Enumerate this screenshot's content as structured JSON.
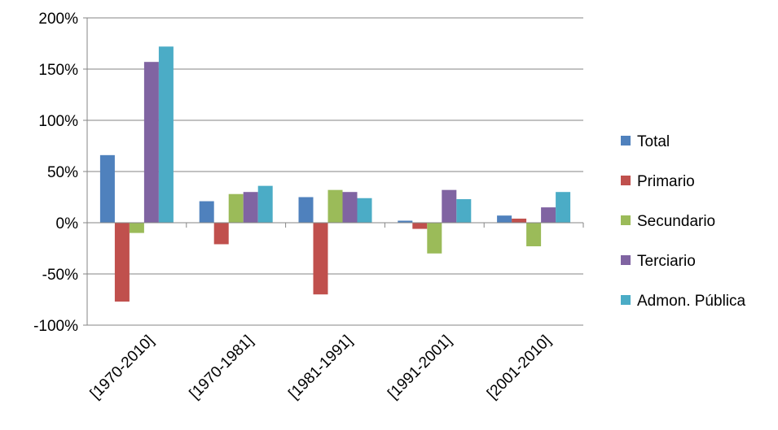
{
  "chart_data": {
    "type": "bar",
    "title": "",
    "xlabel": "",
    "ylabel": "",
    "ylim": [
      -1.0,
      2.0
    ],
    "y_ticks": [
      {
        "value": -1.0,
        "label": "-100%"
      },
      {
        "value": -0.5,
        "label": "-50%"
      },
      {
        "value": 0.0,
        "label": "0%"
      },
      {
        "value": 0.5,
        "label": "50%"
      },
      {
        "value": 1.0,
        "label": "100%"
      },
      {
        "value": 1.5,
        "label": "150%"
      },
      {
        "value": 2.0,
        "label": "200%"
      }
    ],
    "grid": true,
    "legend_position": "right",
    "categories": [
      "[1970-2010]",
      "[1970-1981]",
      "[1981-1991]",
      "[1991-2001]",
      "[2001-2010]"
    ],
    "series": [
      {
        "name": "Total",
        "color": "#4F81BD",
        "values": [
          0.66,
          0.21,
          0.25,
          0.02,
          0.07
        ]
      },
      {
        "name": "Primario",
        "color": "#C0504D",
        "values": [
          -0.77,
          -0.21,
          -0.7,
          -0.06,
          0.04
        ]
      },
      {
        "name": "Secundario",
        "color": "#9BBB59",
        "values": [
          -0.1,
          0.28,
          0.32,
          -0.3,
          -0.23
        ]
      },
      {
        "name": "Terciario",
        "color": "#8064A2",
        "values": [
          1.57,
          0.3,
          0.3,
          0.32,
          0.15
        ]
      },
      {
        "name": "Admon. Pública",
        "color": "#4BACC6",
        "values": [
          1.72,
          0.36,
          0.24,
          0.23,
          0.3
        ]
      }
    ]
  }
}
